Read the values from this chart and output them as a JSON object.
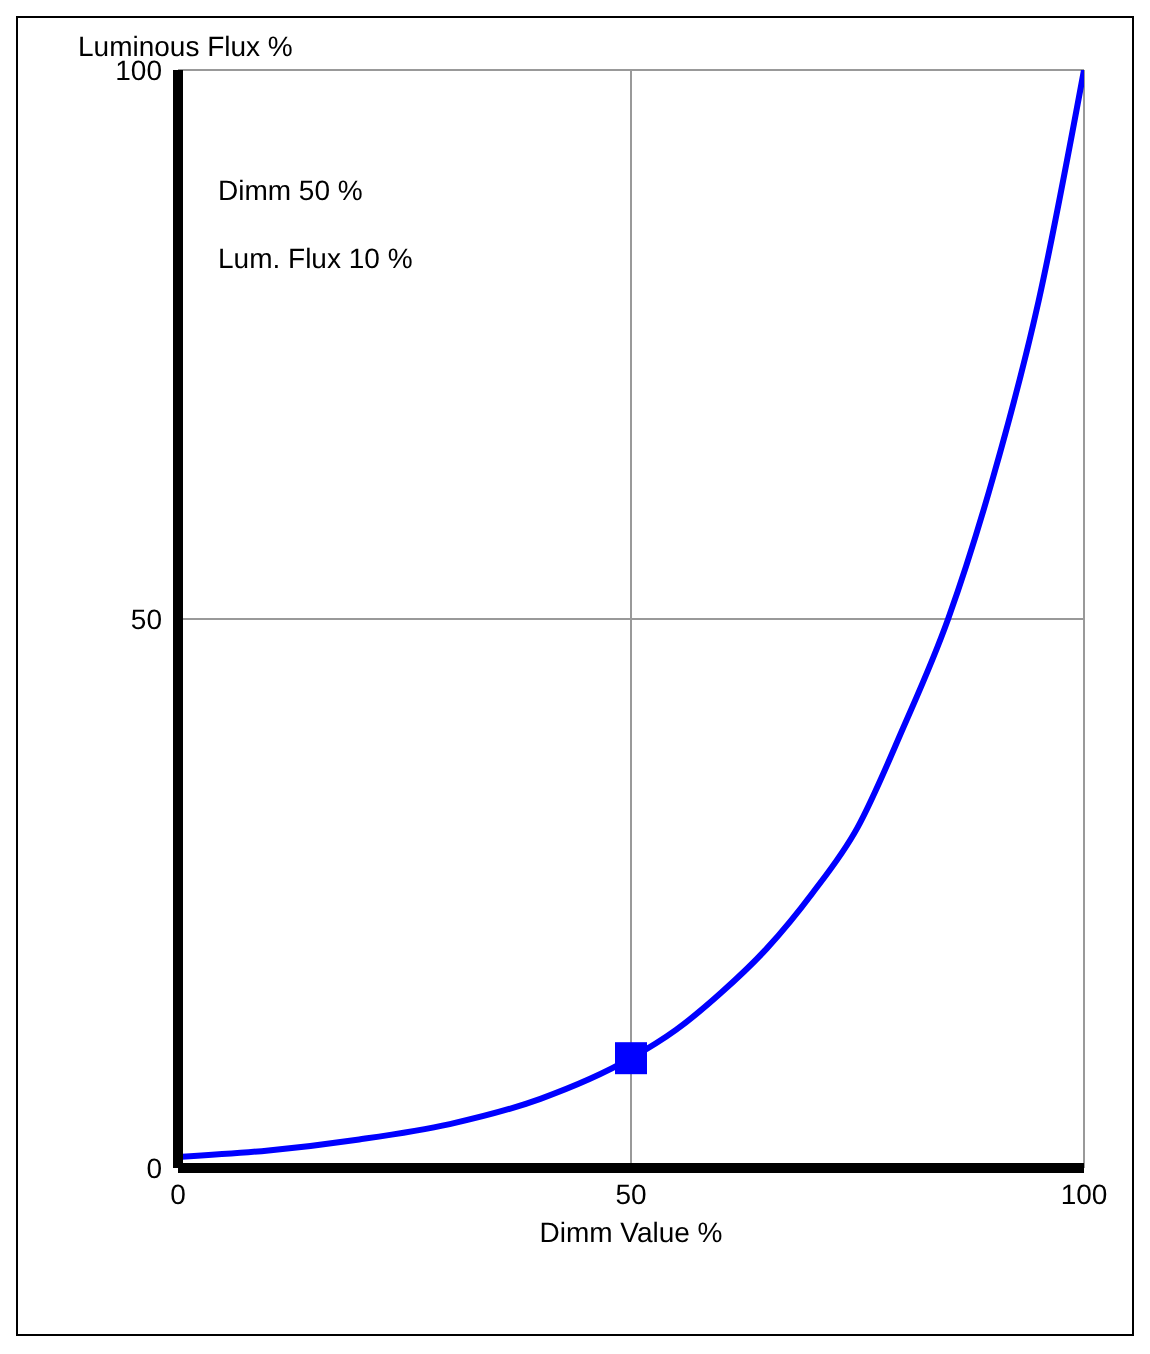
{
  "chart_data": {
    "type": "line",
    "xlabel": "Dimm Value %",
    "ylabel": "Luminous Flux %",
    "annotations": [
      "Dimm 50 %",
      "Lum. Flux 10 %"
    ],
    "xlim": [
      0,
      100
    ],
    "ylim": [
      0,
      100
    ],
    "xticks": [
      0,
      50,
      100
    ],
    "yticks": [
      0,
      50,
      100
    ],
    "grid": true,
    "legend": false,
    "series": [
      {
        "color": "#0000ff",
        "marker": "none",
        "x": [
          0,
          10,
          20,
          30,
          40,
          50,
          55,
          60,
          65,
          70,
          75,
          80,
          85,
          90,
          95,
          100
        ],
        "values": [
          1,
          1.6,
          2.6,
          4,
          6.3,
          10,
          12.6,
          16,
          20,
          25,
          31,
          40,
          50,
          63,
          79,
          100
        ]
      },
      {
        "type": "scatter",
        "color": "#0000ff",
        "marker": "square",
        "x": [
          50
        ],
        "values": [
          10
        ]
      }
    ]
  }
}
